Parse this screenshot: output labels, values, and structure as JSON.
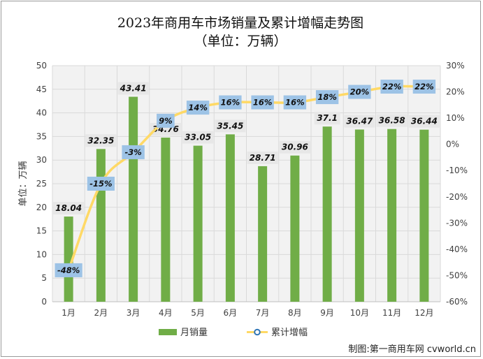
{
  "chart_data": {
    "type": "bar",
    "title": "2023年商用车市场销量及累计增幅走势图",
    "subtitle": "（单位：万辆）",
    "ylabel": "单位：万辆",
    "categories": [
      "1月",
      "2月",
      "3月",
      "4月",
      "5月",
      "6月",
      "7月",
      "8月",
      "9月",
      "10月",
      "11月",
      "12月"
    ],
    "ylim": [
      0,
      50
    ],
    "y_ticks": [
      "0",
      "5",
      "10",
      "15",
      "20",
      "25",
      "30",
      "35",
      "40",
      "45",
      "50"
    ],
    "y2lim": [
      -60,
      30
    ],
    "y2_ticks": [
      "-60%",
      "-50%",
      "-40%",
      "-30%",
      "-20%",
      "-10%",
      "0%",
      "10%",
      "20%",
      "30%"
    ],
    "grid": true,
    "legend_position": "bottom",
    "series": [
      {
        "name": "月销量",
        "type": "bar",
        "axis": "left",
        "color": "#70AD47",
        "values": [
          18.04,
          32.35,
          43.41,
          34.76,
          33.05,
          35.45,
          28.71,
          30.96,
          37.1,
          36.47,
          36.58,
          36.44
        ],
        "labels": [
          "18.04",
          "32.35",
          "43.41",
          "34.76",
          "33.05",
          "35.45",
          "28.71",
          "30.96",
          "37.1",
          "36.47",
          "36.58",
          "36.44"
        ]
      },
      {
        "name": "累计增幅",
        "type": "line",
        "axis": "right",
        "color": "#FFD966",
        "values": [
          -48,
          -15,
          -3,
          9,
          14,
          16,
          16,
          16,
          18,
          20,
          22,
          22
        ],
        "labels": [
          "-48%",
          "-15%",
          "-3%",
          "9%",
          "14%",
          "16%",
          "16%",
          "16%",
          "18%",
          "20%",
          "22%",
          "22%"
        ]
      }
    ]
  },
  "credit": "制图:第一商用车网 cvworld.cn",
  "colors": {
    "plot_bg": "#F2F2F2",
    "label_box": "#9DC3E6",
    "marker_stroke": "#2E75B6"
  }
}
